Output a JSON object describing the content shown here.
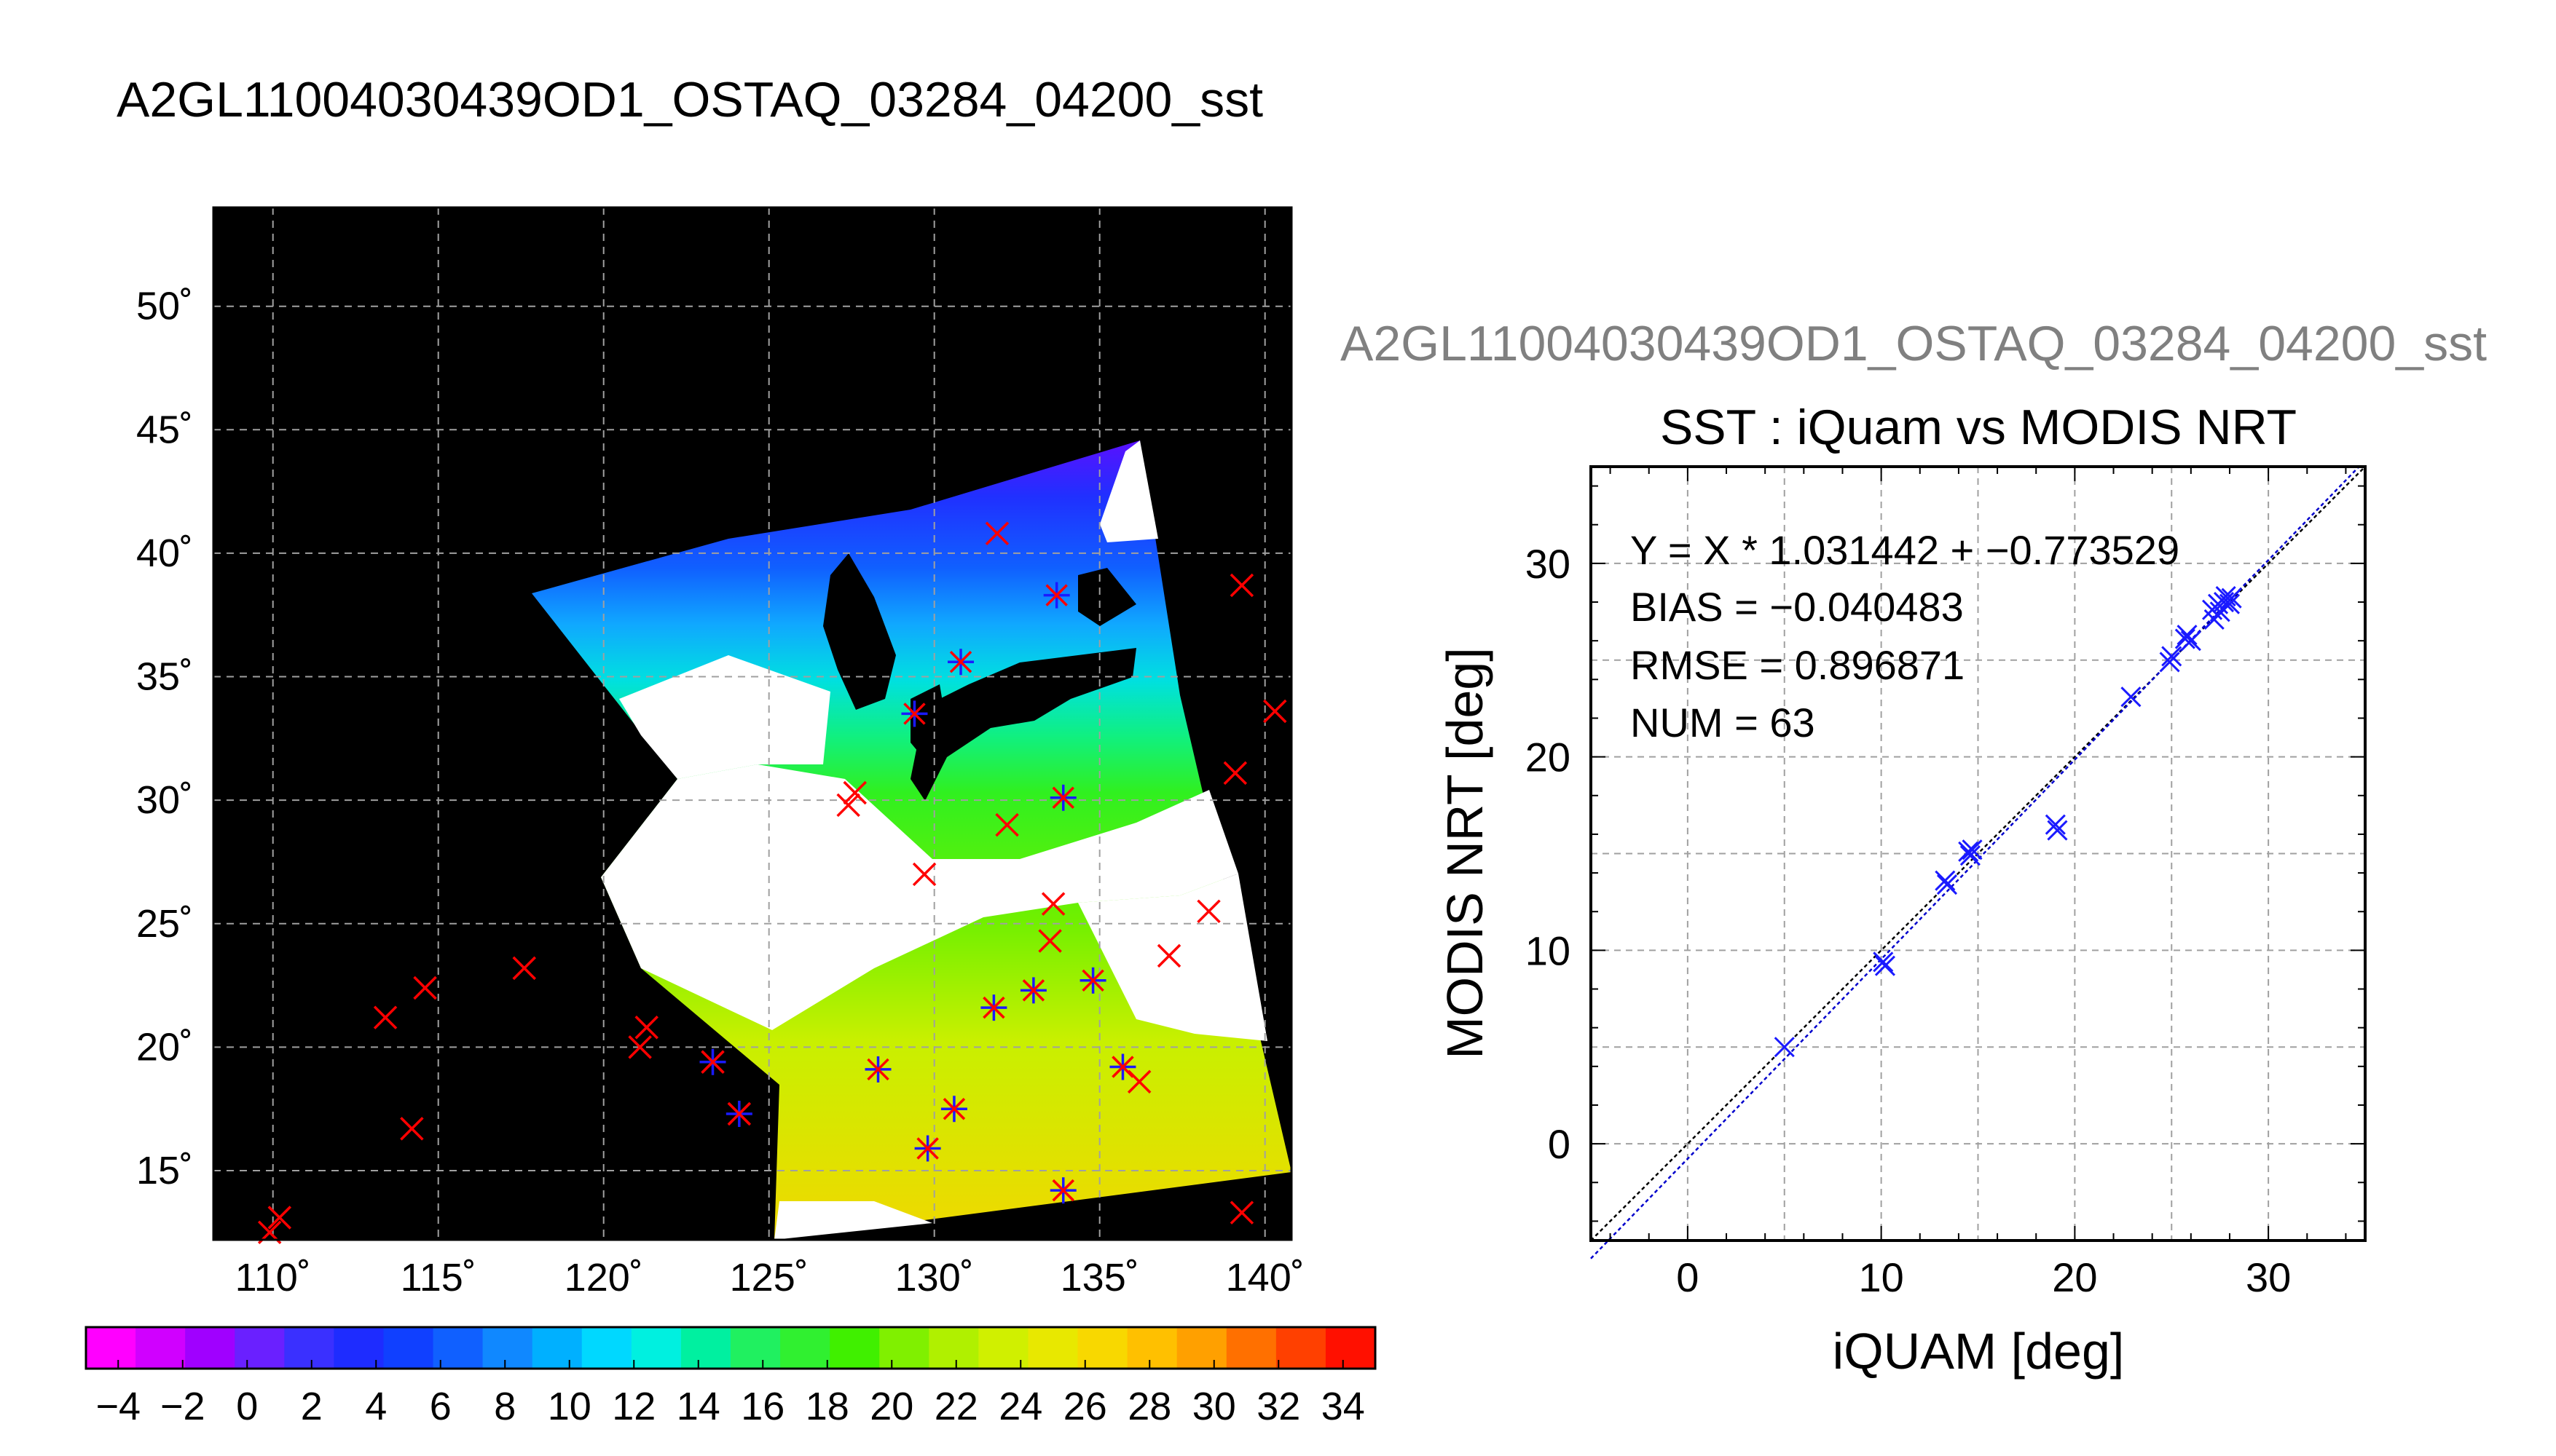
{
  "main_title": "A2GL11004030439OD1_OSTAQ_03284_04200_sst",
  "scatter_supertitle": "A2GL11004030439OD1_OSTAQ_03284_04200_sst",
  "colors": {
    "map_background": "#000000",
    "cloud_mask": "#ffffff",
    "iquam_marker": "#ff0000",
    "matchup_marker": "#1a1aff",
    "grid": "#a0a0a0",
    "fit_line": "#0000cc",
    "one_to_one_line": "#000000"
  },
  "map": {
    "lon_ticks": [
      "110˚",
      "115˚",
      "120˚",
      "125˚",
      "130˚",
      "135˚",
      "140˚"
    ],
    "lat_ticks": [
      "50˚",
      "45˚",
      "40˚",
      "35˚",
      "30˚",
      "25˚",
      "20˚",
      "15˚"
    ],
    "lon_range": [
      108.2,
      140.8
    ],
    "lat_range": [
      12.2,
      54.0
    ],
    "colorbar": {
      "labels": [
        "−4",
        "−2",
        "0",
        "2",
        "4",
        "6",
        "8",
        "10",
        "12",
        "14",
        "16",
        "18",
        "20",
        "22",
        "24",
        "26",
        "28",
        "30",
        "32",
        "34"
      ],
      "min": -5,
      "max": 35,
      "palette": [
        "#ff00ff",
        "#d000ff",
        "#a000ff",
        "#6a20ff",
        "#3a30ff",
        "#1e2cff",
        "#1040ff",
        "#1060ff",
        "#1088ff",
        "#00b0ff",
        "#00d8ff",
        "#00f0e0",
        "#00f0a0",
        "#20f060",
        "#30f030",
        "#40f000",
        "#80f000",
        "#b0f000",
        "#d0f000",
        "#e8e800",
        "#f8d800",
        "#ffc000",
        "#ffa000",
        "#ff7000",
        "#ff4000",
        "#ff1000"
      ]
    },
    "iquam_points": [
      [
        110.2,
        13.1
      ],
      [
        109.9,
        12.5
      ],
      [
        113.4,
        21.2
      ],
      [
        114.6,
        22.4
      ],
      [
        114.2,
        16.7
      ],
      [
        117.6,
        23.2
      ],
      [
        121.1,
        20.0
      ],
      [
        121.3,
        20.8
      ],
      [
        123.3,
        19.4
      ],
      [
        124.1,
        17.3
      ],
      [
        127.4,
        29.8
      ],
      [
        127.6,
        30.3
      ],
      [
        129.7,
        27.0
      ],
      [
        131.9,
        40.8
      ],
      [
        132.2,
        29.0
      ],
      [
        133.6,
        25.8
      ],
      [
        133.5,
        24.3
      ],
      [
        136.2,
        18.6
      ],
      [
        137.1,
        23.7
      ],
      [
        138.3,
        25.5
      ],
      [
        139.3,
        38.7
      ],
      [
        140.3,
        33.6
      ],
      [
        139.1,
        31.1
      ],
      [
        139.3,
        13.3
      ]
    ],
    "matchup_points": [
      [
        128.3,
        19.1
      ],
      [
        129.8,
        15.9
      ],
      [
        130.6,
        17.5
      ],
      [
        131.8,
        21.6
      ],
      [
        133.0,
        22.3
      ],
      [
        134.8,
        22.7
      ],
      [
        135.7,
        19.2
      ],
      [
        133.9,
        14.2
      ],
      [
        133.7,
        38.3
      ],
      [
        130.8,
        35.6
      ],
      [
        129.4,
        33.5
      ],
      [
        133.9,
        30.1
      ],
      [
        123.3,
        19.4
      ],
      [
        124.1,
        17.3
      ]
    ]
  },
  "chart_data": {
    "type": "scatter",
    "title": "SST : iQuam vs MODIS NRT",
    "xlabel": "iQUAM [deg]",
    "ylabel": "MODIS NRT [deg]",
    "xlim": [
      -5,
      35
    ],
    "ylim": [
      -5,
      35
    ],
    "xticks": [
      0,
      10,
      20,
      30
    ],
    "yticks": [
      0,
      10,
      20,
      30
    ],
    "grid": true,
    "stats": {
      "regression": "Y = X * 1.031442 + −0.773529",
      "bias": "BIAS = −0.040483",
      "rmse": "RMSE = 0.896871",
      "num": "NUM = 63"
    },
    "fit": {
      "slope": 1.031442,
      "intercept": -0.773529
    },
    "points": [
      [
        5.0,
        5.0
      ],
      [
        10.1,
        9.4
      ],
      [
        10.2,
        9.2
      ],
      [
        13.3,
        13.6
      ],
      [
        13.4,
        13.4
      ],
      [
        14.5,
        15.1
      ],
      [
        14.6,
        14.9
      ],
      [
        14.7,
        15.2
      ],
      [
        19.0,
        16.5
      ],
      [
        19.1,
        16.2
      ],
      [
        22.9,
        23.1
      ],
      [
        24.9,
        24.9
      ],
      [
        25.0,
        25.2
      ],
      [
        25.7,
        26.1
      ],
      [
        25.8,
        26.3
      ],
      [
        26.0,
        26.0
      ],
      [
        27.1,
        27.6
      ],
      [
        27.2,
        27.1
      ],
      [
        27.4,
        27.9
      ],
      [
        27.5,
        27.5
      ],
      [
        27.7,
        28.0
      ],
      [
        27.8,
        28.3
      ],
      [
        28.0,
        27.9
      ],
      [
        28.1,
        28.2
      ]
    ]
  }
}
